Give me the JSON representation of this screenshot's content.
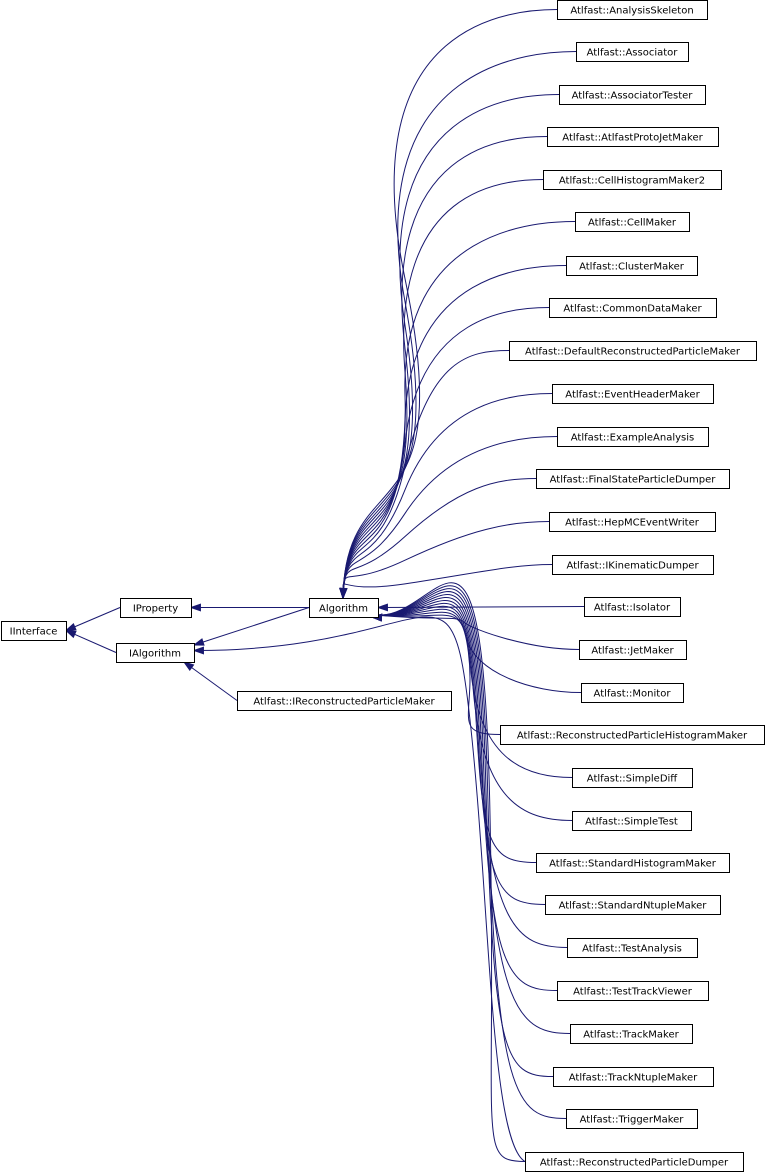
{
  "diagram": {
    "type": "class inheritance graph",
    "colors": {
      "edge": "#191970",
      "edge_alt": "#8b1a1a",
      "node_border": "#000000",
      "background": "#ffffff"
    },
    "nodes": [
      {
        "id": "iinterface",
        "label": "IInterface"
      },
      {
        "id": "iproperty",
        "label": "IProperty"
      },
      {
        "id": "ialgorithm",
        "label": "IAlgorithm"
      },
      {
        "id": "algorithm",
        "label": "Algorithm"
      },
      {
        "id": "irpm",
        "label": "Atlfast::IReconstructedParticleMaker"
      },
      {
        "id": "n0",
        "label": "Atlfast::AnalysisSkeleton"
      },
      {
        "id": "n1",
        "label": "Atlfast::Associator"
      },
      {
        "id": "n2",
        "label": "Atlfast::AssociatorTester"
      },
      {
        "id": "n3",
        "label": "Atlfast::AtlfastProtoJetMaker"
      },
      {
        "id": "n4",
        "label": "Atlfast::CellHistogramMaker2"
      },
      {
        "id": "n5",
        "label": "Atlfast::CellMaker"
      },
      {
        "id": "n6",
        "label": "Atlfast::ClusterMaker"
      },
      {
        "id": "n7",
        "label": "Atlfast::CommonDataMaker"
      },
      {
        "id": "n8",
        "label": "Atlfast::DefaultReconstructedParticleMaker"
      },
      {
        "id": "n9",
        "label": "Atlfast::EventHeaderMaker"
      },
      {
        "id": "n10",
        "label": "Atlfast::ExampleAnalysis"
      },
      {
        "id": "n11",
        "label": "Atlfast::FinalStateParticleDumper"
      },
      {
        "id": "n12",
        "label": "Atlfast::HepMCEventWriter"
      },
      {
        "id": "n13",
        "label": "Atlfast::IKinematicDumper"
      },
      {
        "id": "n14",
        "label": "Atlfast::Isolator"
      },
      {
        "id": "n15",
        "label": "Atlfast::JetMaker"
      },
      {
        "id": "n16",
        "label": "Atlfast::Monitor"
      },
      {
        "id": "n17",
        "label": "Atlfast::ReconstructedParticleHistogramMaker"
      },
      {
        "id": "n18",
        "label": "Atlfast::SimpleDiff"
      },
      {
        "id": "n19",
        "label": "Atlfast::SimpleTest"
      },
      {
        "id": "n20",
        "label": "Atlfast::StandardHistogramMaker"
      },
      {
        "id": "n21",
        "label": "Atlfast::StandardNtupleMaker"
      },
      {
        "id": "n22",
        "label": "Atlfast::TestAnalysis"
      },
      {
        "id": "n23",
        "label": "Atlfast::TestTrackViewer"
      },
      {
        "id": "n24",
        "label": "Atlfast::TrackMaker"
      },
      {
        "id": "n25",
        "label": "Atlfast::TrackNtupleMaker"
      },
      {
        "id": "n26",
        "label": "Atlfast::TriggerMaker"
      },
      {
        "id": "n27",
        "label": "Atlfast::ReconstructedParticleDumper"
      }
    ],
    "edges": [
      {
        "from": "iproperty",
        "to": "iinterface"
      },
      {
        "from": "ialgorithm",
        "to": "iinterface"
      },
      {
        "from": "algorithm",
        "to": "iproperty"
      },
      {
        "from": "algorithm",
        "to": "ialgorithm"
      },
      {
        "from": "irpm",
        "to": "ialgorithm"
      },
      {
        "from": "n27",
        "to": "ialgorithm"
      },
      {
        "from": "n0",
        "to": "algorithm"
      },
      {
        "from": "n1",
        "to": "algorithm"
      },
      {
        "from": "n2",
        "to": "algorithm"
      },
      {
        "from": "n3",
        "to": "algorithm"
      },
      {
        "from": "n4",
        "to": "algorithm"
      },
      {
        "from": "n5",
        "to": "algorithm"
      },
      {
        "from": "n6",
        "to": "algorithm"
      },
      {
        "from": "n7",
        "to": "algorithm"
      },
      {
        "from": "n8",
        "to": "algorithm"
      },
      {
        "from": "n9",
        "to": "algorithm"
      },
      {
        "from": "n10",
        "to": "algorithm"
      },
      {
        "from": "n11",
        "to": "algorithm"
      },
      {
        "from": "n12",
        "to": "algorithm"
      },
      {
        "from": "n13",
        "to": "algorithm"
      },
      {
        "from": "n14",
        "to": "algorithm"
      },
      {
        "from": "n15",
        "to": "algorithm"
      },
      {
        "from": "n16",
        "to": "algorithm"
      },
      {
        "from": "n17",
        "to": "algorithm"
      },
      {
        "from": "n18",
        "to": "algorithm"
      },
      {
        "from": "n19",
        "to": "algorithm"
      },
      {
        "from": "n20",
        "to": "algorithm"
      },
      {
        "from": "n21",
        "to": "algorithm"
      },
      {
        "from": "n22",
        "to": "algorithm"
      },
      {
        "from": "n23",
        "to": "algorithm"
      },
      {
        "from": "n24",
        "to": "algorithm"
      },
      {
        "from": "n25",
        "to": "algorithm"
      },
      {
        "from": "n26",
        "to": "algorithm"
      },
      {
        "from": "n27",
        "to": "algorithm"
      }
    ]
  }
}
